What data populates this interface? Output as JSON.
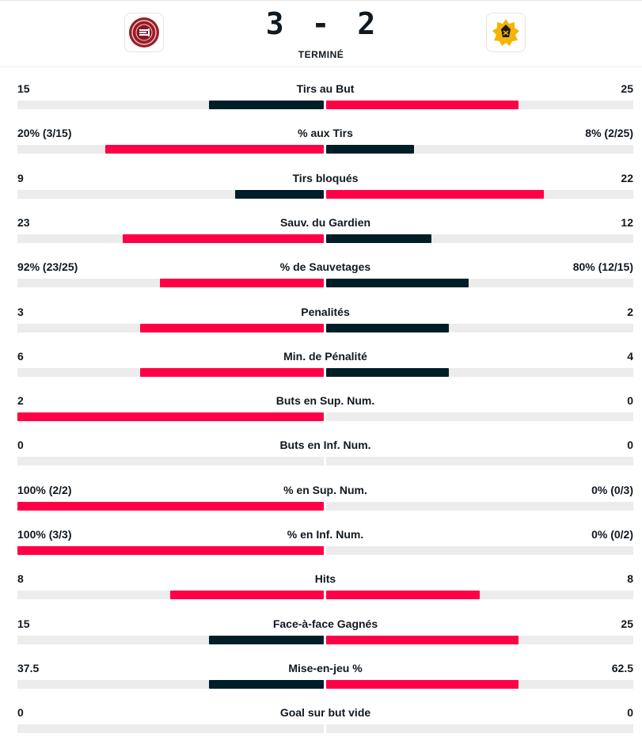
{
  "match": {
    "home_score": "3",
    "separator": "-",
    "away_score": "2",
    "status": "TERMINÉ"
  },
  "colors": {
    "leader": "#ff0046",
    "trailer": "#001e28",
    "track": "#ececec"
  },
  "stats": [
    {
      "label": "Tirs au But",
      "home": "15",
      "away": "25",
      "home_value": 15,
      "away_value": 25
    },
    {
      "label": "% aux Tirs",
      "home": "20% (3/15)",
      "away": "8% (2/25)",
      "home_value": 20,
      "away_value": 8
    },
    {
      "label": "Tirs bloqués",
      "home": "9",
      "away": "22",
      "home_value": 9,
      "away_value": 22
    },
    {
      "label": "Sauv. du Gardien",
      "home": "23",
      "away": "12",
      "home_value": 23,
      "away_value": 12
    },
    {
      "label": "% de Sauvetages",
      "home": "92% (23/25)",
      "away": "80% (12/15)",
      "home_value": 92,
      "away_value": 80
    },
    {
      "label": "Penalités",
      "home": "3",
      "away": "2",
      "home_value": 3,
      "away_value": 2
    },
    {
      "label": "Min. de Pénalité",
      "home": "6",
      "away": "4",
      "home_value": 6,
      "away_value": 4
    },
    {
      "label": "Buts en Sup. Num.",
      "home": "2",
      "away": "0",
      "home_value": 2,
      "away_value": 0
    },
    {
      "label": "Buts en Inf. Num.",
      "home": "0",
      "away": "0",
      "home_value": 0,
      "away_value": 0
    },
    {
      "label": "% en Sup. Num.",
      "home": "100% (2/2)",
      "away": "0% (0/3)",
      "home_value": 100,
      "away_value": 0
    },
    {
      "label": "% en Inf. Num.",
      "home": "100% (3/3)",
      "away": "0% (0/2)",
      "home_value": 100,
      "away_value": 0
    },
    {
      "label": "Hits",
      "home": "8",
      "away": "8",
      "home_value": 8,
      "away_value": 8
    },
    {
      "label": "Face-à-face Gagnés",
      "home": "15",
      "away": "25",
      "home_value": 15,
      "away_value": 25
    },
    {
      "label": "Mise-en-jeu %",
      "home": "37.5",
      "away": "62.5",
      "home_value": 37.5,
      "away_value": 62.5
    },
    {
      "label": "Goal sur but vide",
      "home": "0",
      "away": "0",
      "home_value": 0,
      "away_value": 0
    }
  ]
}
